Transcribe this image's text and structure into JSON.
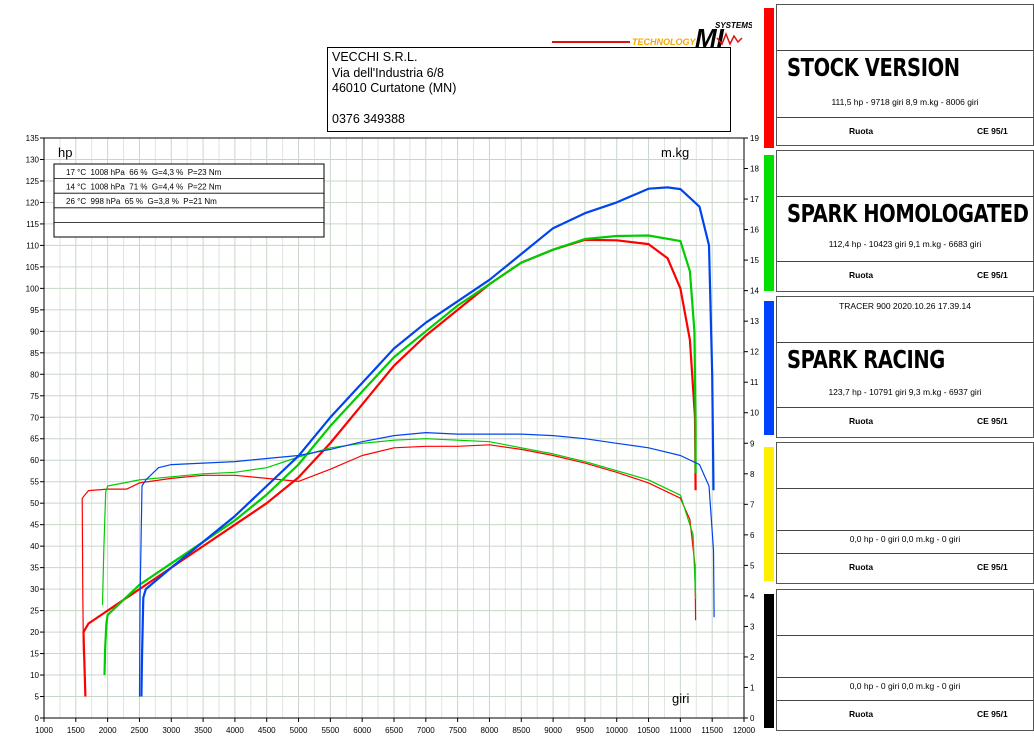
{
  "logo": {
    "text_left": "TECHNOLOGY",
    "text_right": "SYSTEMS",
    "brand": "MI",
    "accent": "#f5a800"
  },
  "address": {
    "line1": "VECCHI S.R.L.",
    "line2": "Via dell'Industria 6/8",
    "line3": "46010 Curtatone (MN)",
    "phone": "0376 349388"
  },
  "conditions": [
    "17 °C  1008 hPa  66 %  G=4,3 %  P=23 Nm",
    "14 °C  1008 hPa  71 %  G=4,4 %  P=22 Nm",
    "26 °C  998 hPa  65 %  G=3,8 %  P=21 Nm",
    "",
    ""
  ],
  "panels": [
    {
      "color": "#ff0000",
      "info": "",
      "name": "STOCK VERSION",
      "values": "111,5 hp - 9718 giri     8,9 m.kg - 8006 giri",
      "foot_left": "Ruota",
      "foot_right": "CE 95/1"
    },
    {
      "color": "#00e000",
      "info": "",
      "name": "SPARK HOMOLOGATED",
      "values": "112,4 hp - 10423 giri     9,1 m.kg - 6683 giri",
      "foot_left": "Ruota",
      "foot_right": "CE 95/1"
    },
    {
      "color": "#0040ff",
      "info": "TRACER 900   2020.10.26 17.39.14",
      "name": "SPARK RACING",
      "values": "123,7 hp - 10791 giri     9,3 m.kg - 6937 giri",
      "foot_left": "Ruota",
      "foot_right": "CE 95/1"
    },
    {
      "color": "#ffee00",
      "info": "",
      "name": "",
      "values": "0,0 hp - 0 giri     0,0 m.kg - 0 giri",
      "foot_left": "Ruota",
      "foot_right": "CE 95/1"
    },
    {
      "color": "#000000",
      "info": "",
      "name": "",
      "values": "0,0 hp - 0 giri     0,0 m.kg - 0 giri",
      "foot_left": "Ruota",
      "foot_right": "CE 95/1"
    }
  ],
  "chart_data": {
    "type": "line",
    "left_label": "hp",
    "right_label": "m.kg",
    "x_label": "giri",
    "xlim": [
      1000,
      12000
    ],
    "ylim_left": [
      0,
      135
    ],
    "ylim_right": [
      0,
      19
    ],
    "x_ticks": [
      1000,
      1500,
      2000,
      2500,
      3000,
      3500,
      4000,
      4500,
      5000,
      5500,
      6000,
      6500,
      7000,
      7500,
      8000,
      8500,
      9000,
      9500,
      10000,
      10500,
      11000,
      11500,
      12000
    ],
    "y_ticks_left": [
      0,
      5,
      10,
      15,
      20,
      25,
      30,
      35,
      40,
      45,
      50,
      55,
      60,
      65,
      70,
      75,
      80,
      85,
      90,
      95,
      100,
      105,
      110,
      115,
      120,
      125,
      130,
      135
    ],
    "y_ticks_right": [
      0,
      1,
      2,
      3,
      4,
      5,
      6,
      7,
      8,
      9,
      10,
      11,
      12,
      13,
      14,
      15,
      16,
      17,
      18,
      19
    ],
    "grid": true,
    "series": [
      {
        "name": "STOCK VERSION",
        "color": "#ff0000",
        "power": [
          [
            1650,
            5
          ],
          [
            1630,
            15
          ],
          [
            1620,
            20
          ],
          [
            1700,
            22
          ],
          [
            2000,
            25
          ],
          [
            2500,
            30
          ],
          [
            3000,
            35
          ],
          [
            3500,
            40
          ],
          [
            4000,
            45
          ],
          [
            4500,
            50
          ],
          [
            5000,
            56
          ],
          [
            5500,
            64
          ],
          [
            6000,
            73
          ],
          [
            6500,
            82
          ],
          [
            7000,
            89
          ],
          [
            7500,
            95
          ],
          [
            8000,
            101
          ],
          [
            8500,
            106
          ],
          [
            9000,
            109
          ],
          [
            9500,
            111.3
          ],
          [
            10000,
            111.2
          ],
          [
            10500,
            110.3
          ],
          [
            10800,
            107
          ],
          [
            11000,
            100
          ],
          [
            11150,
            88
          ],
          [
            11230,
            70
          ],
          [
            11240,
            53
          ]
        ],
        "torque": [
          [
            1620,
            2.1
          ],
          [
            1610,
            4
          ],
          [
            1600,
            7.2
          ],
          [
            1700,
            7.45
          ],
          [
            2000,
            7.5
          ],
          [
            2300,
            7.5
          ],
          [
            2500,
            7.7
          ],
          [
            3000,
            7.85
          ],
          [
            3500,
            7.95
          ],
          [
            4000,
            7.95
          ],
          [
            4500,
            7.85
          ],
          [
            5000,
            7.75
          ],
          [
            5500,
            8.15
          ],
          [
            6000,
            8.6
          ],
          [
            6500,
            8.85
          ],
          [
            7000,
            8.9
          ],
          [
            7500,
            8.9
          ],
          [
            8000,
            8.95
          ],
          [
            8500,
            8.8
          ],
          [
            9000,
            8.6
          ],
          [
            9500,
            8.35
          ],
          [
            10000,
            8.05
          ],
          [
            10500,
            7.7
          ],
          [
            11000,
            7.2
          ],
          [
            11150,
            6.5
          ],
          [
            11230,
            5
          ],
          [
            11240,
            3.2
          ]
        ]
      },
      {
        "name": "SPARK HOMOLOGATED",
        "color": "#00cc00",
        "power": [
          [
            1950,
            10
          ],
          [
            1960,
            16
          ],
          [
            1980,
            22
          ],
          [
            2000,
            24
          ],
          [
            2500,
            31
          ],
          [
            3000,
            36
          ],
          [
            3500,
            41
          ],
          [
            4000,
            46
          ],
          [
            4500,
            52
          ],
          [
            5000,
            59
          ],
          [
            5500,
            68
          ],
          [
            6000,
            76
          ],
          [
            6500,
            84
          ],
          [
            7000,
            90
          ],
          [
            7500,
            96
          ],
          [
            8000,
            101
          ],
          [
            8500,
            106
          ],
          [
            9000,
            109
          ],
          [
            9500,
            111.5
          ],
          [
            10000,
            112.2
          ],
          [
            10500,
            112.3
          ],
          [
            11000,
            111
          ],
          [
            11150,
            104
          ],
          [
            11220,
            90
          ],
          [
            11240,
            68
          ],
          [
            11240,
            57
          ]
        ],
        "torque": [
          [
            1920,
            3.7
          ],
          [
            1940,
            5.5
          ],
          [
            1970,
            7.4
          ],
          [
            2000,
            7.6
          ],
          [
            2500,
            7.8
          ],
          [
            3000,
            7.9
          ],
          [
            3500,
            8
          ],
          [
            4000,
            8.05
          ],
          [
            4500,
            8.2
          ],
          [
            5000,
            8.55
          ],
          [
            5500,
            8.85
          ],
          [
            6000,
            9.0
          ],
          [
            6500,
            9.1
          ],
          [
            7000,
            9.15
          ],
          [
            7500,
            9.1
          ],
          [
            8000,
            9.05
          ],
          [
            8500,
            8.85
          ],
          [
            9000,
            8.65
          ],
          [
            9500,
            8.4
          ],
          [
            10000,
            8.1
          ],
          [
            10500,
            7.8
          ],
          [
            11000,
            7.3
          ],
          [
            11200,
            6
          ],
          [
            11240,
            3.9
          ]
        ]
      },
      {
        "name": "SPARK RACING",
        "color": "#0044ee",
        "power": [
          [
            2530,
            5
          ],
          [
            2540,
            14
          ],
          [
            2560,
            28
          ],
          [
            2600,
            30
          ],
          [
            3000,
            35
          ],
          [
            3500,
            41
          ],
          [
            4000,
            47
          ],
          [
            4500,
            54
          ],
          [
            5000,
            61
          ],
          [
            5500,
            70
          ],
          [
            6000,
            78
          ],
          [
            6500,
            86
          ],
          [
            7000,
            92
          ],
          [
            7500,
            97
          ],
          [
            8000,
            102
          ],
          [
            8500,
            108
          ],
          [
            9000,
            114
          ],
          [
            9500,
            117.5
          ],
          [
            10000,
            120
          ],
          [
            10500,
            123.2
          ],
          [
            10800,
            123.5
          ],
          [
            11000,
            123.1
          ],
          [
            11300,
            119
          ],
          [
            11450,
            110
          ],
          [
            11500,
            80
          ],
          [
            11520,
            53
          ]
        ],
        "torque": [
          [
            2500,
            0.7
          ],
          [
            2510,
            4
          ],
          [
            2540,
            7.6
          ],
          [
            2600,
            7.8
          ],
          [
            2800,
            8.2
          ],
          [
            3000,
            8.3
          ],
          [
            3500,
            8.35
          ],
          [
            4000,
            8.4
          ],
          [
            4500,
            8.5
          ],
          [
            5000,
            8.6
          ],
          [
            5500,
            8.8
          ],
          [
            6000,
            9.05
          ],
          [
            6500,
            9.25
          ],
          [
            7000,
            9.35
          ],
          [
            7500,
            9.3
          ],
          [
            8000,
            9.3
          ],
          [
            8500,
            9.3
          ],
          [
            9000,
            9.25
          ],
          [
            9500,
            9.15
          ],
          [
            10000,
            9.0
          ],
          [
            10500,
            8.85
          ],
          [
            11000,
            8.6
          ],
          [
            11300,
            8.3
          ],
          [
            11450,
            7.6
          ],
          [
            11520,
            5.5
          ],
          [
            11530,
            3.3
          ]
        ]
      }
    ]
  }
}
